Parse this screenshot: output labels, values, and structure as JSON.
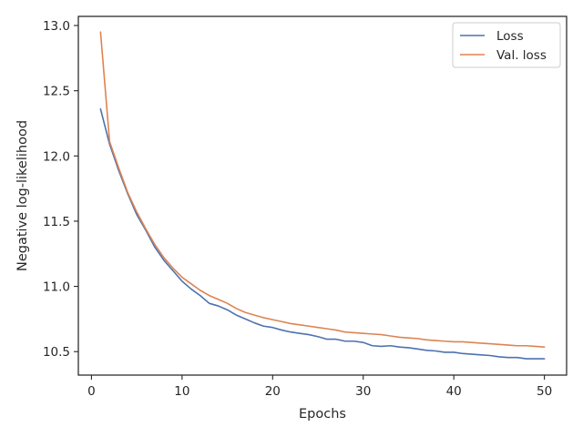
{
  "chart_data": {
    "type": "line",
    "title": "",
    "xlabel": "Epochs",
    "ylabel": "Negative log-likelihood",
    "xlim": [
      -1.45,
      52.45
    ],
    "ylim": [
      10.32,
      13.07
    ],
    "xticks": [
      0,
      10,
      20,
      30,
      40,
      50
    ],
    "xtick_labels": [
      "0",
      "10",
      "20",
      "30",
      "40",
      "50"
    ],
    "yticks": [
      10.5,
      11.0,
      11.5,
      12.0,
      12.5,
      13.0
    ],
    "ytick_labels": [
      "10.5",
      "11.0",
      "11.5",
      "12.0",
      "12.5",
      "13.0"
    ],
    "grid": false,
    "legend_position": "top-right",
    "x": [
      1,
      2,
      3,
      4,
      5,
      6,
      7,
      8,
      9,
      10,
      11,
      12,
      13,
      14,
      15,
      16,
      17,
      18,
      19,
      20,
      21,
      22,
      23,
      24,
      25,
      26,
      27,
      28,
      29,
      30,
      31,
      32,
      33,
      34,
      35,
      36,
      37,
      38,
      39,
      40,
      41,
      42,
      43,
      44,
      45,
      46,
      47,
      48,
      49,
      50
    ],
    "series": [
      {
        "name": "Loss",
        "color": "#4c72b0",
        "values": [
          12.36,
          12.09,
          11.89,
          11.71,
          11.55,
          11.43,
          11.3,
          11.2,
          11.12,
          11.04,
          10.98,
          10.93,
          10.87,
          10.85,
          10.82,
          10.78,
          10.75,
          10.72,
          10.695,
          10.685,
          10.665,
          10.65,
          10.64,
          10.63,
          10.615,
          10.595,
          10.595,
          10.58,
          10.58,
          10.57,
          10.545,
          10.54,
          10.545,
          10.535,
          10.53,
          10.52,
          10.51,
          10.505,
          10.495,
          10.495,
          10.485,
          10.48,
          10.475,
          10.47,
          10.46,
          10.455,
          10.455,
          10.445,
          10.445,
          10.445
        ]
      },
      {
        "name": "Val. loss",
        "color": "#dd8452",
        "values": [
          12.95,
          12.11,
          11.91,
          11.72,
          11.57,
          11.44,
          11.32,
          11.22,
          11.14,
          11.07,
          11.02,
          10.97,
          10.93,
          10.9,
          10.87,
          10.83,
          10.8,
          10.78,
          10.76,
          10.745,
          10.73,
          10.715,
          10.705,
          10.695,
          10.685,
          10.675,
          10.665,
          10.65,
          10.645,
          10.64,
          10.635,
          10.63,
          10.62,
          10.61,
          10.605,
          10.6,
          10.59,
          10.585,
          10.58,
          10.575,
          10.575,
          10.57,
          10.565,
          10.56,
          10.555,
          10.55,
          10.545,
          10.545,
          10.54,
          10.535
        ]
      }
    ]
  }
}
